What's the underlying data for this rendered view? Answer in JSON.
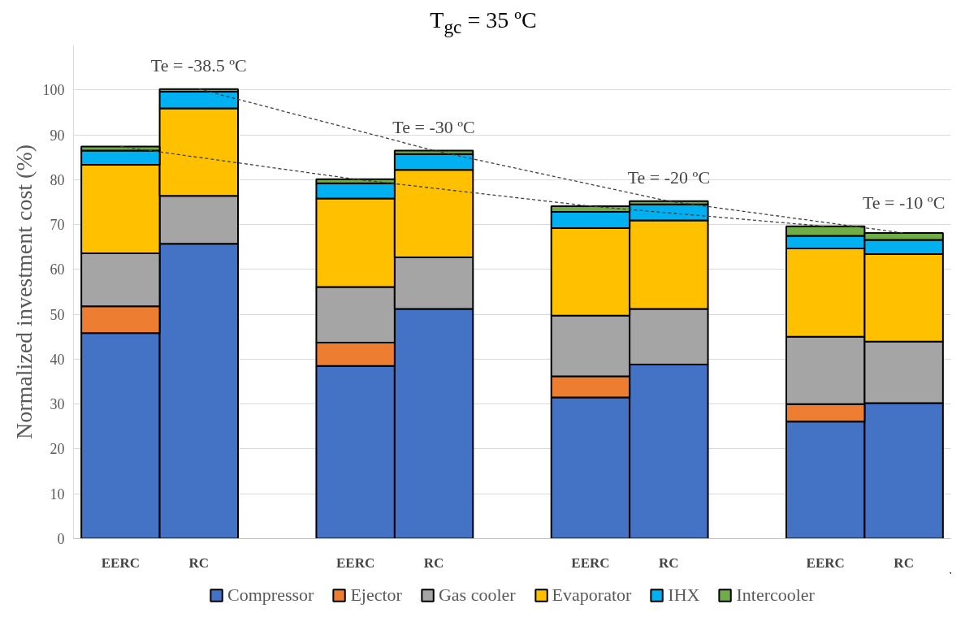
{
  "chart_data": {
    "type": "bar",
    "stacked": true,
    "title": "T$_{gc}$ = 35 ºC",
    "ylabel": "Normalized investment cost (%)",
    "categories": [
      "EERC",
      "RC",
      null,
      "EERC",
      "RC",
      null,
      "EERC",
      "RC",
      null,
      "EERC",
      "RC"
    ],
    "series": [
      {
        "name": "Compressor",
        "color": "#4472c4",
        "values": [
          45.8,
          65.7,
          null,
          38.5,
          51.2,
          null,
          31.5,
          38.8,
          null,
          26.1,
          30.2
        ]
      },
      {
        "name": "Ejector",
        "color": "#ed7d31",
        "values": [
          6.0,
          null,
          null,
          5.2,
          null,
          null,
          4.7,
          null,
          null,
          3.9,
          null
        ]
      },
      {
        "name": "Gas cooler",
        "color": "#a5a5a5",
        "values": [
          11.8,
          10.7,
          null,
          12.4,
          11.5,
          null,
          13.5,
          12.4,
          null,
          15.0,
          13.7
        ]
      },
      {
        "name": "Evaporator",
        "color": "#ffc000",
        "values": [
          19.7,
          19.5,
          null,
          19.7,
          19.5,
          null,
          19.5,
          19.7,
          null,
          19.7,
          19.5
        ]
      },
      {
        "name": "IHX",
        "color": "#00b0f0",
        "values": [
          3.2,
          3.7,
          null,
          3.4,
          3.5,
          null,
          3.6,
          3.6,
          null,
          2.8,
          3.2
        ]
      },
      {
        "name": "Intercooler",
        "color": "#70ad47",
        "values": [
          0.9,
          0.6,
          null,
          0.9,
          0.8,
          null,
          1.3,
          0.7,
          null,
          2.1,
          1.5
        ]
      },
      {
        "type": "line",
        "color": "#404040",
        "line_style": "dashed",
        "values": [
          87.4,
          null,
          null,
          80.1,
          null,
          null,
          74.1,
          null,
          null,
          69.6,
          null
        ]
      },
      {
        "type": "line",
        "color": "#404040",
        "line_style": "dashed",
        "values": [
          null,
          100.2,
          null,
          null,
          86.5,
          null,
          null,
          75.2,
          null,
          null,
          68.1
        ]
      }
    ],
    "annotations": [
      "Te = -38.5 ºC",
      "Te = -30 ºC",
      "Te = -20 ºC",
      "Te = -10 ºC"
    ],
    "ylim": [
      0,
      110
    ],
    "yticks": [
      0,
      10,
      20,
      30,
      40,
      50,
      60,
      70,
      80,
      90,
      100
    ],
    "grid": "y",
    "legend": "bottom"
  }
}
